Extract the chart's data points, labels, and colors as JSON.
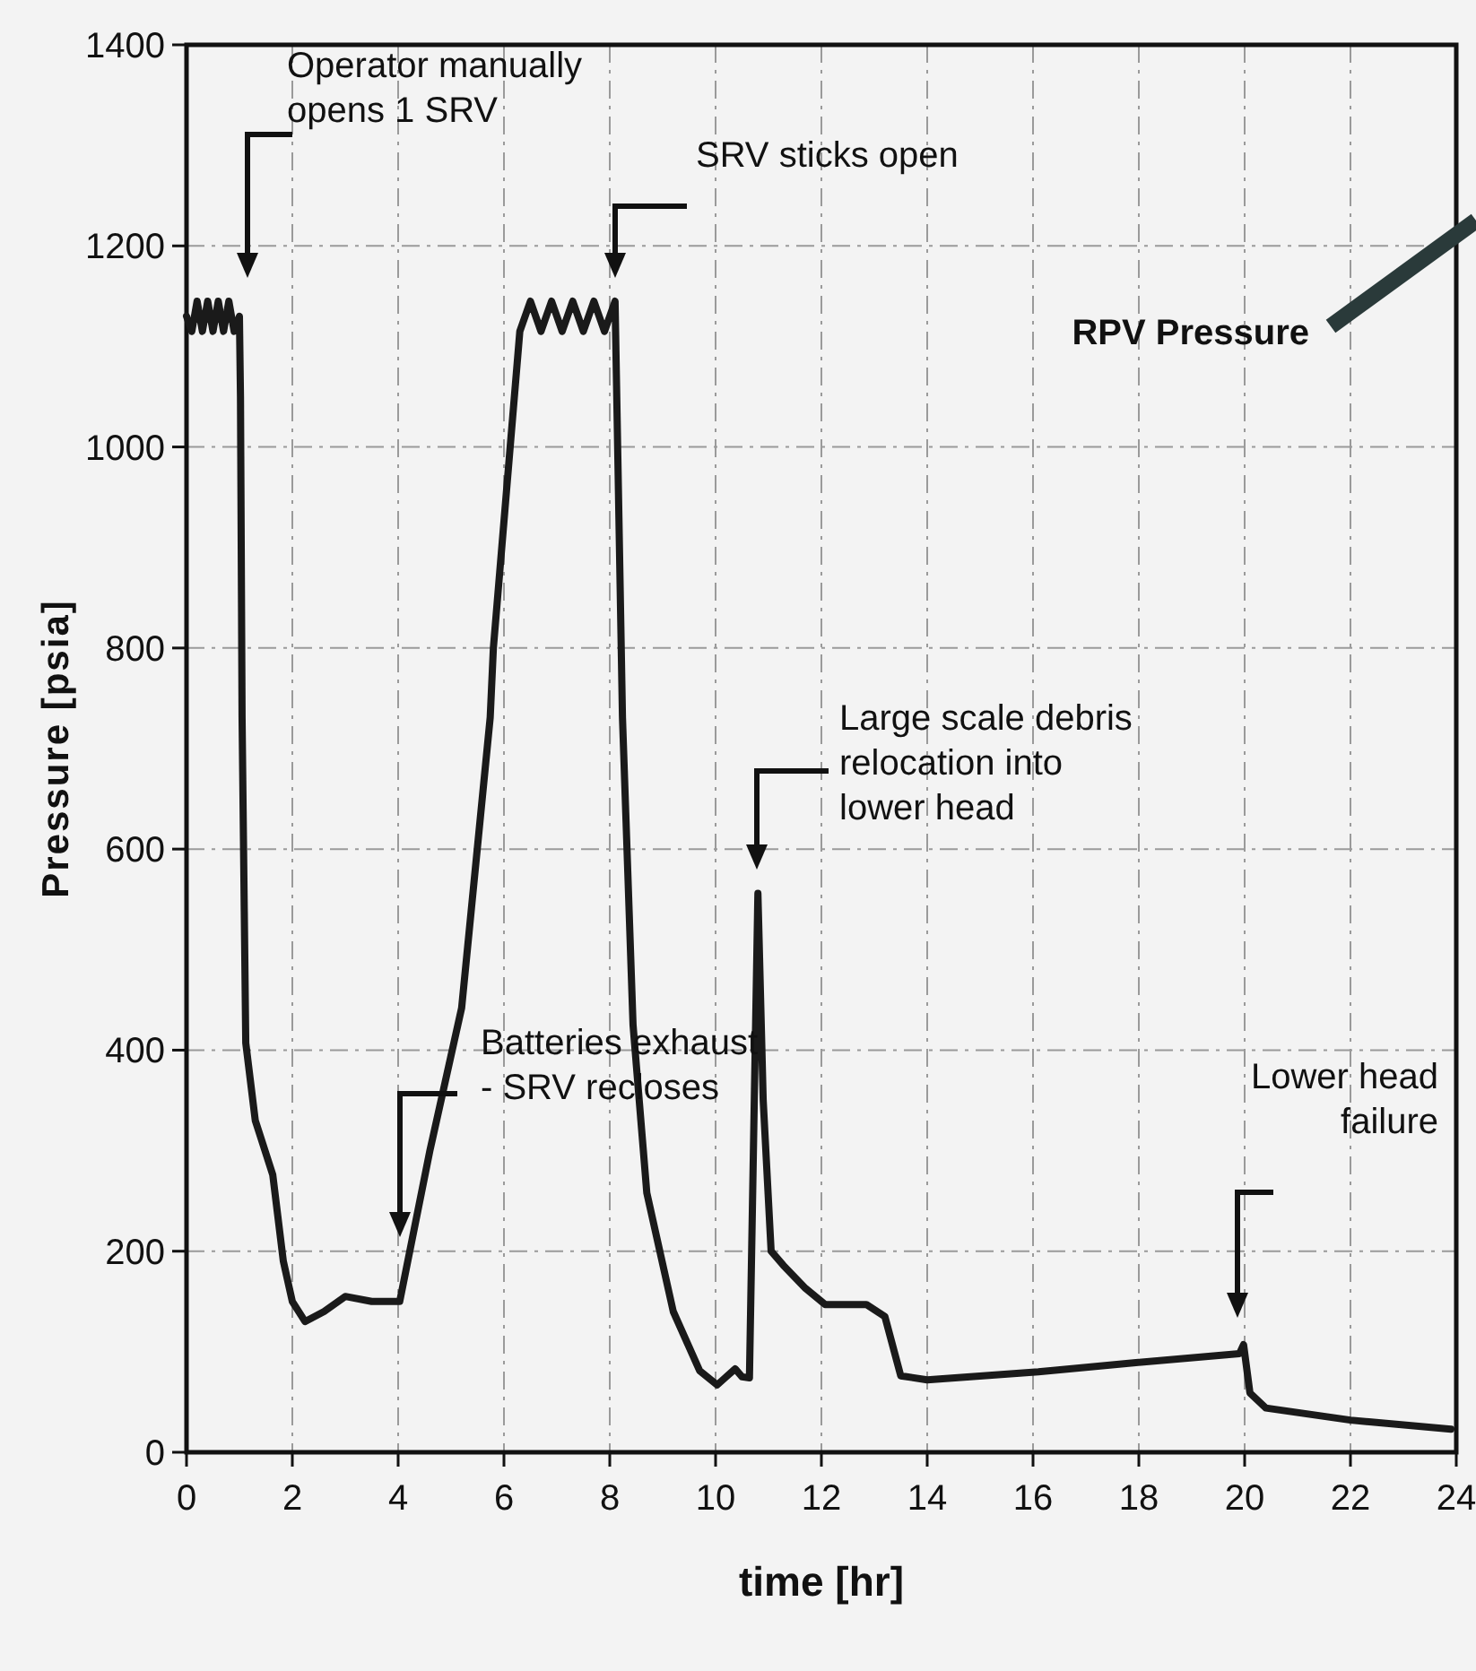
{
  "chart_data": {
    "type": "line",
    "xlabel": "time [hr]",
    "ylabel": "Pressure [psia]",
    "x": [
      0,
      0.1,
      0.2,
      0.3,
      0.4,
      0.5,
      0.6,
      0.7,
      0.8,
      0.9,
      1.0,
      1.02,
      1.05,
      1.12,
      1.3,
      1.63,
      1.83,
      2.0,
      2.24,
      2.6,
      3.0,
      3.5,
      4.03,
      4.6,
      5.2,
      5.74,
      5.8,
      6.3,
      6.5,
      6.7,
      6.9,
      7.1,
      7.3,
      7.5,
      7.7,
      7.9,
      8.1,
      8.24,
      8.44,
      8.7,
      9.2,
      9.7,
      10.03,
      10.2,
      10.37,
      10.5,
      10.64,
      10.8,
      10.9,
      11.05,
      11.28,
      11.7,
      12.07,
      12.85,
      13.2,
      13.5,
      14,
      16.1,
      17.9,
      19.9,
      19.98,
      20.1,
      20.4,
      22,
      23.9
    ],
    "series": [
      {
        "color": "#1a1a1a",
        "values": [
          1130,
          1115,
          1145,
          1115,
          1145,
          1115,
          1145,
          1115,
          1145,
          1115,
          1130,
          1050,
          731,
          407,
          330,
          276,
          190,
          150,
          130,
          140,
          155,
          150,
          150,
          300,
          442,
          731,
          800,
          1115,
          1145,
          1115,
          1145,
          1115,
          1145,
          1115,
          1145,
          1115,
          1145,
          731,
          425,
          258,
          140,
          81,
          67,
          75,
          83,
          75,
          74,
          556,
          350,
          200,
          186,
          163,
          147,
          147,
          135,
          76,
          72,
          80,
          89,
          98,
          107,
          59,
          44,
          32,
          23
        ]
      }
    ],
    "xlim": [
      0,
      24
    ],
    "xticks": [
      0,
      2,
      4,
      6,
      8,
      10,
      12,
      14,
      16,
      18,
      20,
      22,
      24
    ],
    "ylim": [
      0,
      1400
    ],
    "yticks": [
      0,
      200,
      400,
      600,
      800,
      1000,
      1200,
      1400
    ],
    "grid": true,
    "marker": "none",
    "line_style": "solid",
    "annotations": [
      "Operator manually\nopens 1 SRV",
      "SRV sticks open",
      "Batteries exhaust\n- SRV recloses",
      "Large scale debris\nrelocation into\nlower head",
      "Lower head\nfailure",
      "RPV Pressure"
    ]
  }
}
